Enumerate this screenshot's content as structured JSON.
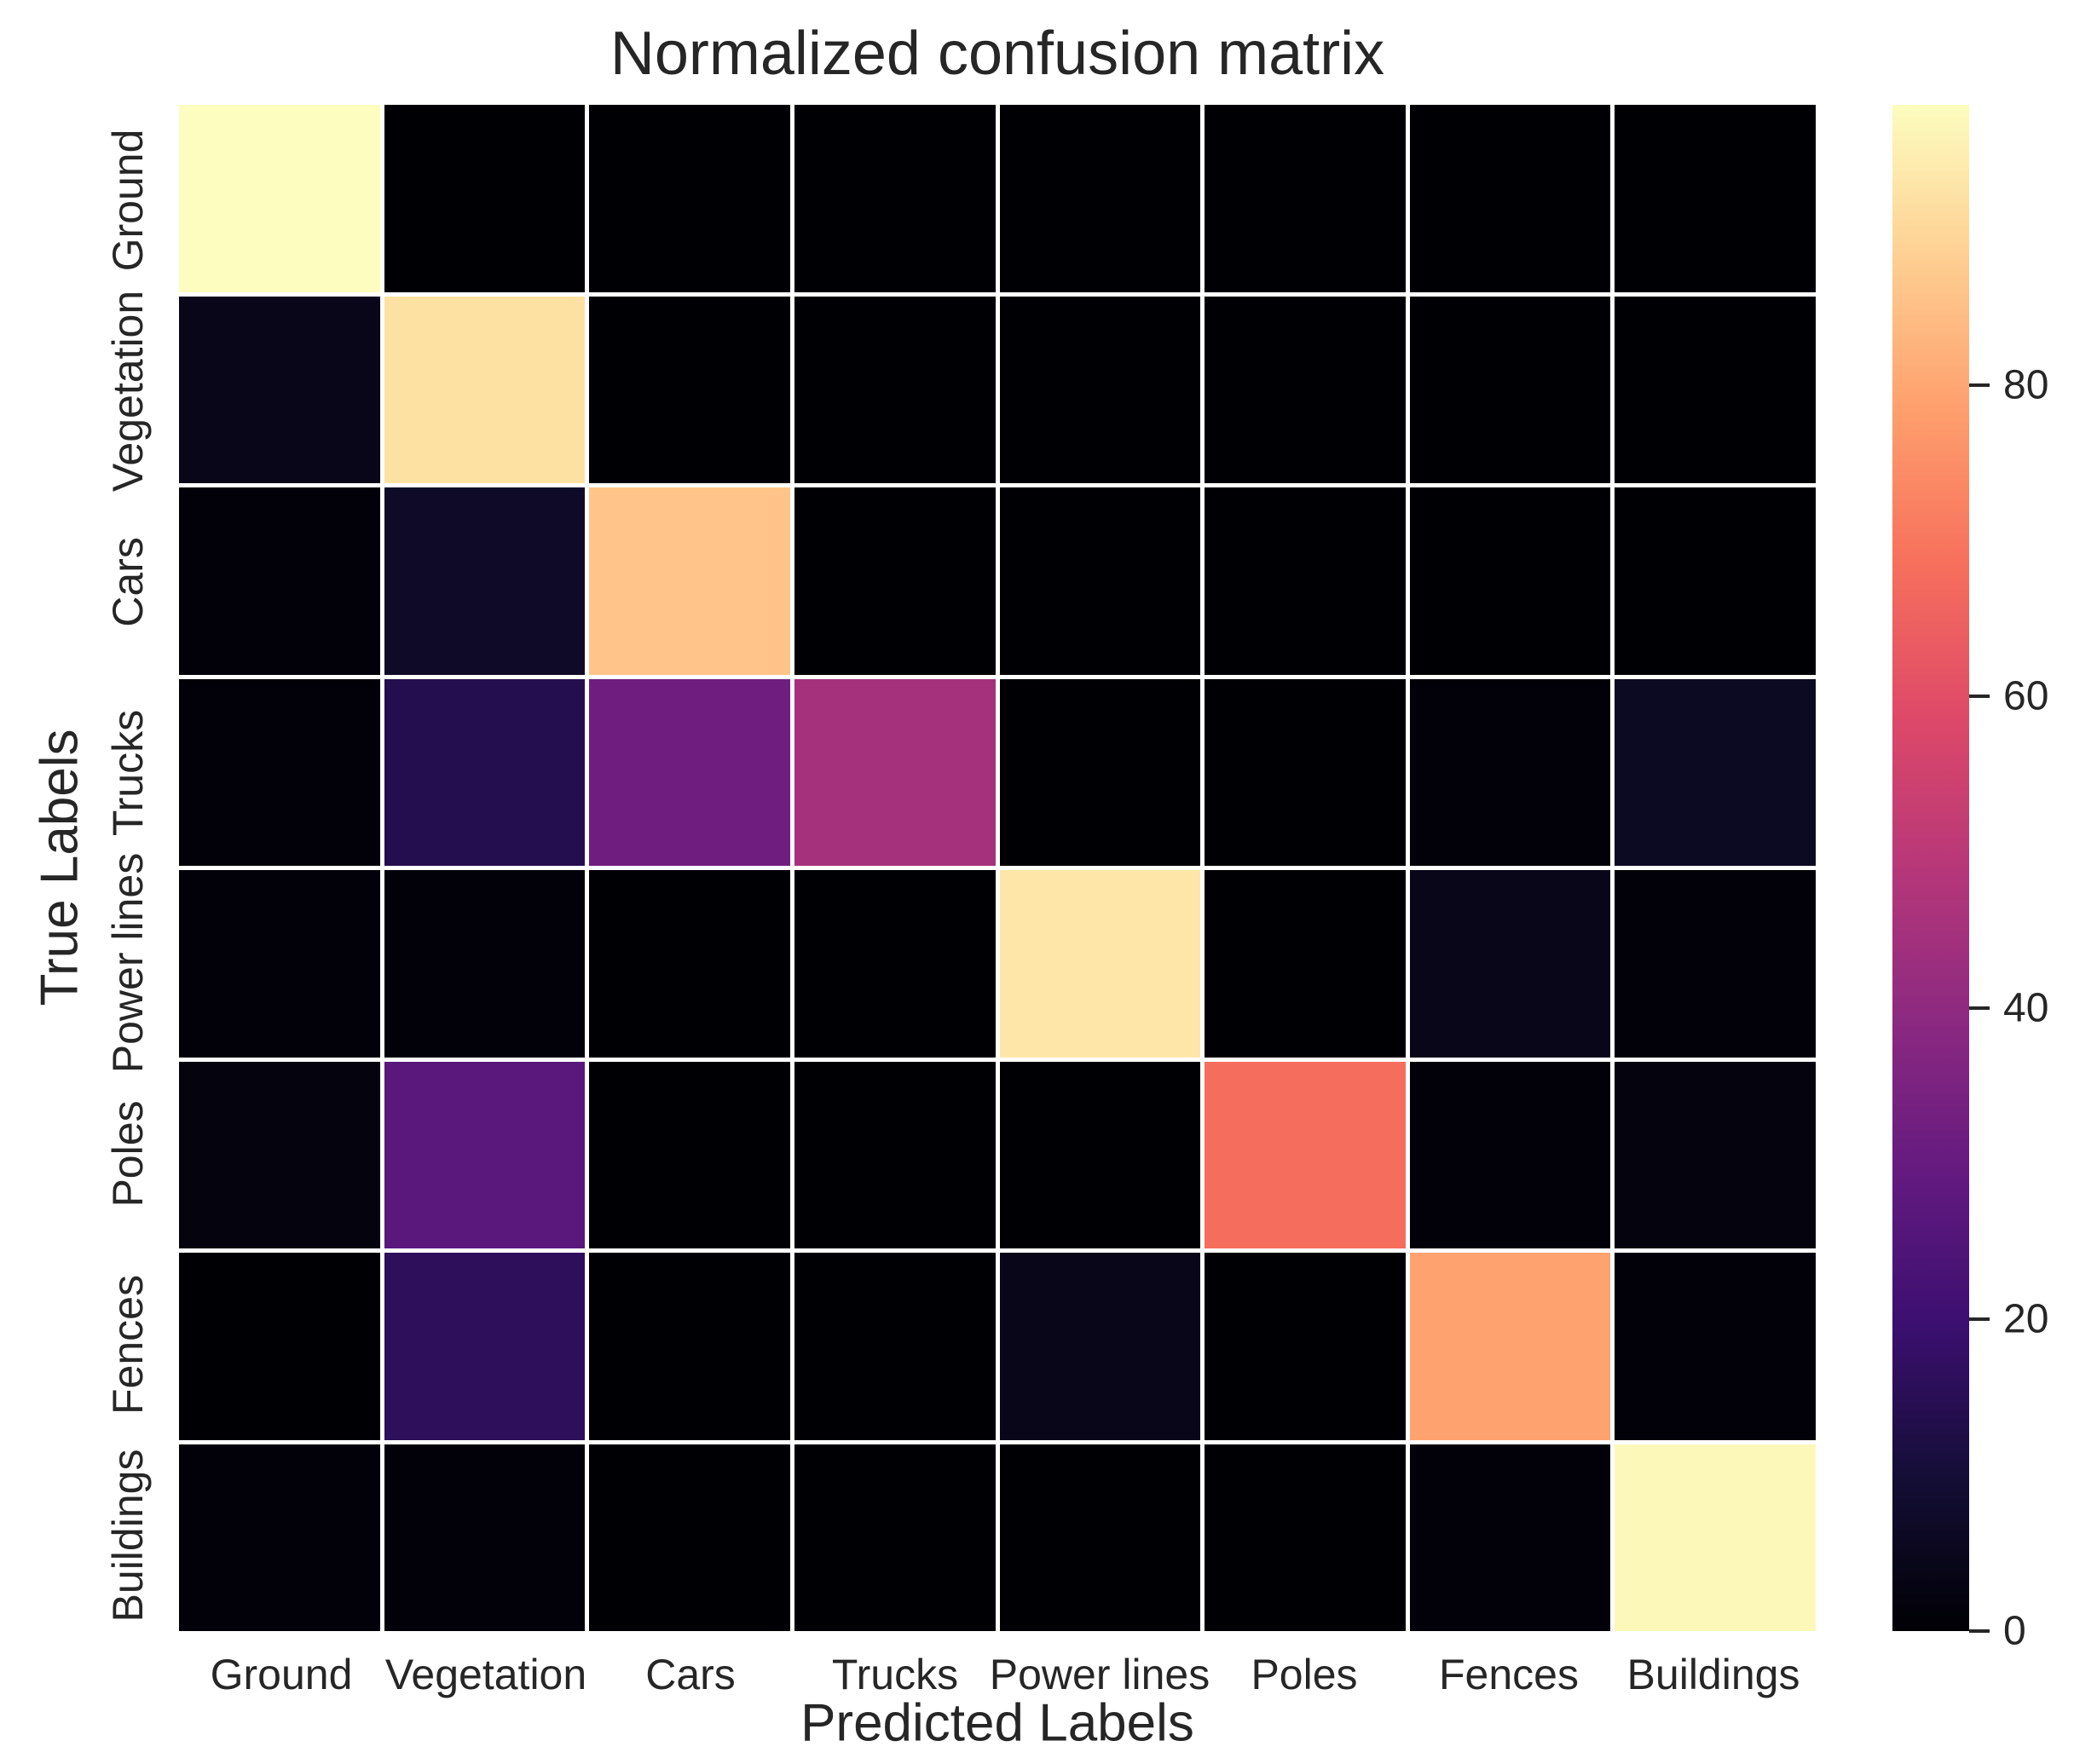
{
  "title": "Normalized confusion matrix",
  "chart_data": {
    "type": "heatmap",
    "title": "Normalized confusion matrix",
    "xlabel": "Predicted Labels",
    "ylabel": "True Labels",
    "x_categories": [
      "Ground",
      "Vegetation",
      "Cars",
      "Trucks",
      "Power lines",
      "Poles",
      "Fences",
      "Buildings"
    ],
    "y_categories": [
      "Ground",
      "Vegetation",
      "Cars",
      "Trucks",
      "Power lines",
      "Poles",
      "Fences",
      "Buildings"
    ],
    "values": [
      [
        98,
        0,
        0,
        0,
        0,
        0,
        0,
        0
      ],
      [
        4,
        92,
        0,
        0,
        0,
        0,
        0,
        0
      ],
      [
        1,
        7,
        86,
        0,
        0,
        0,
        0,
        0
      ],
      [
        1,
        14,
        32,
        45,
        0,
        0,
        1,
        6
      ],
      [
        1,
        1,
        0,
        0,
        93,
        0,
        4,
        1
      ],
      [
        2,
        27,
        0,
        0,
        0,
        68,
        1,
        2
      ],
      [
        0,
        16,
        0,
        0,
        4,
        0,
        79,
        1
      ],
      [
        1,
        1,
        0,
        0,
        0,
        0,
        1,
        97
      ]
    ],
    "vmin": 0,
    "vmax": 98,
    "colormap": "magma",
    "grid_line_color": "#ffffff",
    "background_color": "#ffffff",
    "text_color": "#262626",
    "colorbar": {
      "position": "right",
      "ticks": [
        0,
        20,
        40,
        60,
        80
      ]
    }
  }
}
